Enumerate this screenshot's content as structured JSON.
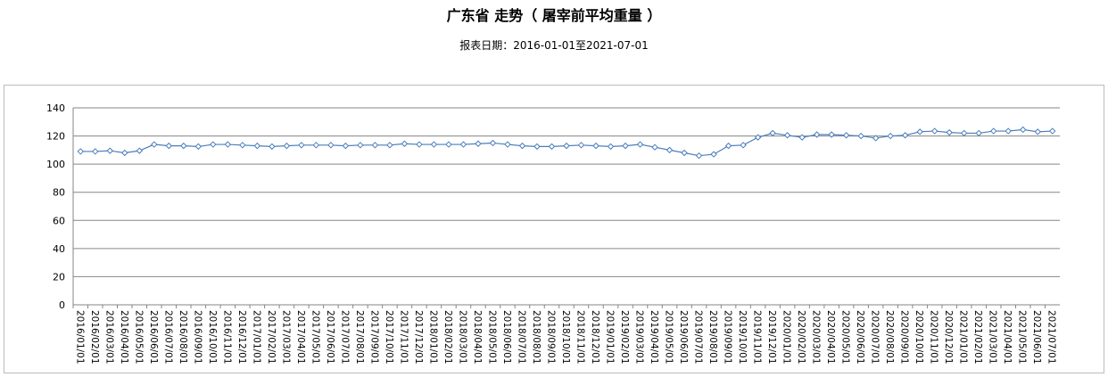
{
  "chart_data": {
    "type": "line",
    "title": "广东省 走势（ 屠宰前平均重量 ）",
    "subtitle": "报表日期：2016-01-01至2021-07-01",
    "ylim": [
      0,
      140
    ],
    "yticks": [
      0,
      20,
      40,
      60,
      80,
      100,
      120,
      140
    ],
    "grid": true,
    "colors": {
      "line": "#4a7ebb",
      "grid": "#868686"
    },
    "categories": [
      "2016/01/01",
      "2016/02/01",
      "2016/03/01",
      "2016/04/01",
      "2016/05/01",
      "2016/06/01",
      "2016/07/01",
      "2016/08/01",
      "2016/09/01",
      "2016/10/01",
      "2016/11/01",
      "2016/12/01",
      "2017/01/01",
      "2017/02/01",
      "2017/03/01",
      "2017/04/01",
      "2017/05/01",
      "2017/06/01",
      "2017/07/01",
      "2017/08/01",
      "2017/09/01",
      "2017/10/01",
      "2017/11/01",
      "2017/12/01",
      "2018/01/01",
      "2018/02/01",
      "2018/03/01",
      "2018/04/01",
      "2018/05/01",
      "2018/06/01",
      "2018/07/01",
      "2018/08/01",
      "2018/09/01",
      "2018/10/01",
      "2018/11/01",
      "2018/12/01",
      "2019/01/01",
      "2019/02/01",
      "2019/03/01",
      "2019/04/01",
      "2019/05/01",
      "2019/06/01",
      "2019/07/01",
      "2019/08/01",
      "2019/09/01",
      "2019/10/01",
      "2019/11/01",
      "2019/12/01",
      "2020/01/01",
      "2020/02/01",
      "2020/03/01",
      "2020/04/01",
      "2020/05/01",
      "2020/06/01",
      "2020/07/01",
      "2020/08/01",
      "2020/09/01",
      "2020/10/01",
      "2020/11/01",
      "2020/12/01",
      "2021/01/01",
      "2021/02/01",
      "2021/03/01",
      "2021/04/01",
      "2021/05/01",
      "2021/06/01",
      "2021/07/01"
    ],
    "values": [
      109,
      109,
      109.5,
      108,
      109.5,
      114,
      113,
      113,
      112.5,
      114,
      114,
      113.5,
      113,
      112.5,
      113,
      113.5,
      113.5,
      113.5,
      113,
      113.5,
      113.5,
      113.5,
      114.5,
      114,
      114,
      114,
      114,
      114.5,
      115,
      114,
      113,
      112.5,
      112.5,
      113,
      113.5,
      113,
      112.5,
      113,
      114,
      112,
      110,
      108,
      106,
      107,
      113,
      113.5,
      119,
      122,
      120.5,
      119,
      121,
      121,
      120.5,
      120,
      118.5,
      120,
      120.5,
      123,
      123.5,
      122.5,
      122,
      122,
      123.5,
      123.5,
      124.5,
      123,
      123.5
    ]
  }
}
